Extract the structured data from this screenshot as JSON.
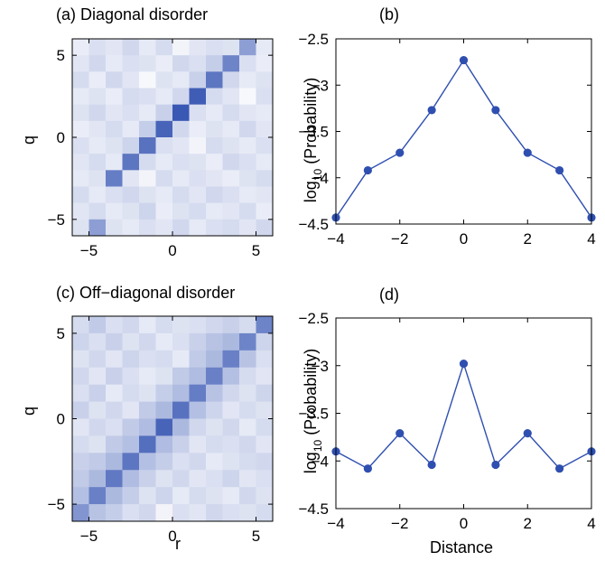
{
  "chart_data": [
    {
      "type": "heatmap",
      "panel": "a",
      "title": "(a) Diagonal disorder",
      "xlabel": "",
      "ylabel": "q",
      "xlim": [
        -6,
        6
      ],
      "ylim": [
        -6,
        6
      ],
      "xticks": [
        "−5",
        "0",
        "5"
      ],
      "yticks": [
        "−5",
        "0",
        "5"
      ],
      "base_color": "#2f4fb0",
      "grid_size": 12,
      "rows_top_to_bottom": [
        [
          0.1,
          0.18,
          0.14,
          0.22,
          0.12,
          0.2,
          0.06,
          0.14,
          0.18,
          0.16,
          0.55,
          0.12
        ],
        [
          0.14,
          0.22,
          0.12,
          0.18,
          0.16,
          0.1,
          0.22,
          0.18,
          0.28,
          0.7,
          0.18,
          0.1
        ],
        [
          0.2,
          0.1,
          0.22,
          0.14,
          0.04,
          0.16,
          0.12,
          0.26,
          0.78,
          0.22,
          0.12,
          0.16
        ],
        [
          0.12,
          0.16,
          0.1,
          0.2,
          0.18,
          0.12,
          0.22,
          0.92,
          0.2,
          0.14,
          0.04,
          0.18
        ],
        [
          0.16,
          0.22,
          0.14,
          0.18,
          0.12,
          0.26,
          0.95,
          0.18,
          0.12,
          0.2,
          0.14,
          0.12
        ],
        [
          0.1,
          0.14,
          0.2,
          0.12,
          0.28,
          0.88,
          0.22,
          0.1,
          0.16,
          0.12,
          0.22,
          0.14
        ],
        [
          0.18,
          0.12,
          0.16,
          0.24,
          0.8,
          0.18,
          0.14,
          0.06,
          0.2,
          0.16,
          0.12,
          0.18
        ],
        [
          0.14,
          0.2,
          0.12,
          0.78,
          0.2,
          0.12,
          0.18,
          0.16,
          0.1,
          0.22,
          0.18,
          0.12
        ],
        [
          0.12,
          0.16,
          0.74,
          0.14,
          0.06,
          0.2,
          0.12,
          0.18,
          0.14,
          0.1,
          0.16,
          0.2
        ],
        [
          0.2,
          0.12,
          0.18,
          0.22,
          0.16,
          0.12,
          0.2,
          0.14,
          0.22,
          0.18,
          0.12,
          0.14
        ],
        [
          0.14,
          0.2,
          0.12,
          0.16,
          0.24,
          0.1,
          0.16,
          0.2,
          0.12,
          0.14,
          0.2,
          0.1
        ],
        [
          0.16,
          0.55,
          0.16,
          0.12,
          0.18,
          0.14,
          0.22,
          0.12,
          0.18,
          0.2,
          0.14,
          0.22
        ]
      ]
    },
    {
      "type": "line",
      "panel": "b",
      "title": "(b)",
      "xlabel": "",
      "ylabel": "log10 (Probability)",
      "ylabel_parts": [
        "log",
        "10",
        " (Probability)"
      ],
      "xlim": [
        -4,
        4
      ],
      "ylim": [
        -4.5,
        -2.5
      ],
      "xticks": [
        -4,
        -2,
        0,
        2,
        4
      ],
      "yticks": [
        -2.5,
        -3,
        -3.5,
        -4,
        -4.5
      ],
      "xtick_labels": [
        "−4",
        "−2",
        "0",
        "2",
        "4"
      ],
      "ytick_labels": [
        "−2.5",
        "−3",
        "−3.5",
        "−4",
        "−4.5"
      ],
      "color": "#2f4fb0",
      "x": [
        -4,
        -3,
        -2,
        -1,
        0,
        1,
        2,
        3,
        4
      ],
      "y": [
        -4.43,
        -3.92,
        -3.73,
        -3.27,
        -2.73,
        -3.27,
        -3.73,
        -3.92,
        -4.43
      ]
    },
    {
      "type": "heatmap",
      "panel": "c",
      "title": "(c) Off−diagonal disorder",
      "xlabel": "r",
      "ylabel": "q",
      "xlim": [
        -6,
        6
      ],
      "ylim": [
        -6,
        6
      ],
      "xticks": [
        "−5",
        "0",
        "5"
      ],
      "yticks": [
        "−5",
        "0",
        "5"
      ],
      "base_color": "#2f4fb0",
      "grid_size": 12,
      "rows_top_to_bottom": [
        [
          0.2,
          0.3,
          0.18,
          0.22,
          0.12,
          0.2,
          0.16,
          0.18,
          0.22,
          0.26,
          0.2,
          0.7
        ],
        [
          0.24,
          0.18,
          0.26,
          0.16,
          0.22,
          0.12,
          0.18,
          0.26,
          0.34,
          0.4,
          0.7,
          0.24
        ],
        [
          0.16,
          0.22,
          0.14,
          0.24,
          0.18,
          0.2,
          0.12,
          0.3,
          0.4,
          0.72,
          0.34,
          0.18
        ],
        [
          0.22,
          0.14,
          0.26,
          0.18,
          0.12,
          0.16,
          0.3,
          0.38,
          0.72,
          0.36,
          0.2,
          0.14
        ],
        [
          0.18,
          0.26,
          0.12,
          0.2,
          0.16,
          0.28,
          0.38,
          0.74,
          0.34,
          0.22,
          0.16,
          0.24
        ],
        [
          0.26,
          0.16,
          0.22,
          0.14,
          0.3,
          0.4,
          0.8,
          0.36,
          0.24,
          0.14,
          0.2,
          0.16
        ],
        [
          0.14,
          0.22,
          0.18,
          0.3,
          0.38,
          0.88,
          0.4,
          0.22,
          0.16,
          0.22,
          0.12,
          0.2
        ],
        [
          0.2,
          0.16,
          0.3,
          0.36,
          0.82,
          0.38,
          0.26,
          0.14,
          0.2,
          0.18,
          0.22,
          0.14
        ],
        [
          0.26,
          0.3,
          0.4,
          0.78,
          0.36,
          0.28,
          0.18,
          0.22,
          0.12,
          0.16,
          0.2,
          0.22
        ],
        [
          0.3,
          0.4,
          0.76,
          0.38,
          0.26,
          0.16,
          0.22,
          0.14,
          0.18,
          0.24,
          0.14,
          0.18
        ],
        [
          0.36,
          0.72,
          0.4,
          0.28,
          0.16,
          0.24,
          0.12,
          0.2,
          0.16,
          0.12,
          0.22,
          0.16
        ],
        [
          0.6,
          0.34,
          0.28,
          0.18,
          0.22,
          0.06,
          0.18,
          0.14,
          0.22,
          0.18,
          0.16,
          0.2
        ]
      ]
    },
    {
      "type": "line",
      "panel": "d",
      "title": "(d)",
      "xlabel": "Distance",
      "ylabel": "log10 (Probability)",
      "ylabel_parts": [
        "log",
        "10",
        " (Probability)"
      ],
      "xlim": [
        -4,
        4
      ],
      "ylim": [
        -4.5,
        -2.5
      ],
      "xticks": [
        -4,
        -2,
        0,
        2,
        4
      ],
      "yticks": [
        -2.5,
        -3,
        -3.5,
        -4,
        -4.5
      ],
      "xtick_labels": [
        "−4",
        "−2",
        "0",
        "2",
        "4"
      ],
      "ytick_labels": [
        "−2.5",
        "−3",
        "−3.5",
        "−4",
        "−4.5"
      ],
      "color": "#2f4fb0",
      "x": [
        -4,
        -3,
        -2,
        -1,
        0,
        1,
        2,
        3,
        4
      ],
      "y": [
        -3.9,
        -4.08,
        -3.71,
        -4.04,
        -2.98,
        -4.04,
        -3.71,
        -4.08,
        -3.9
      ]
    }
  ]
}
